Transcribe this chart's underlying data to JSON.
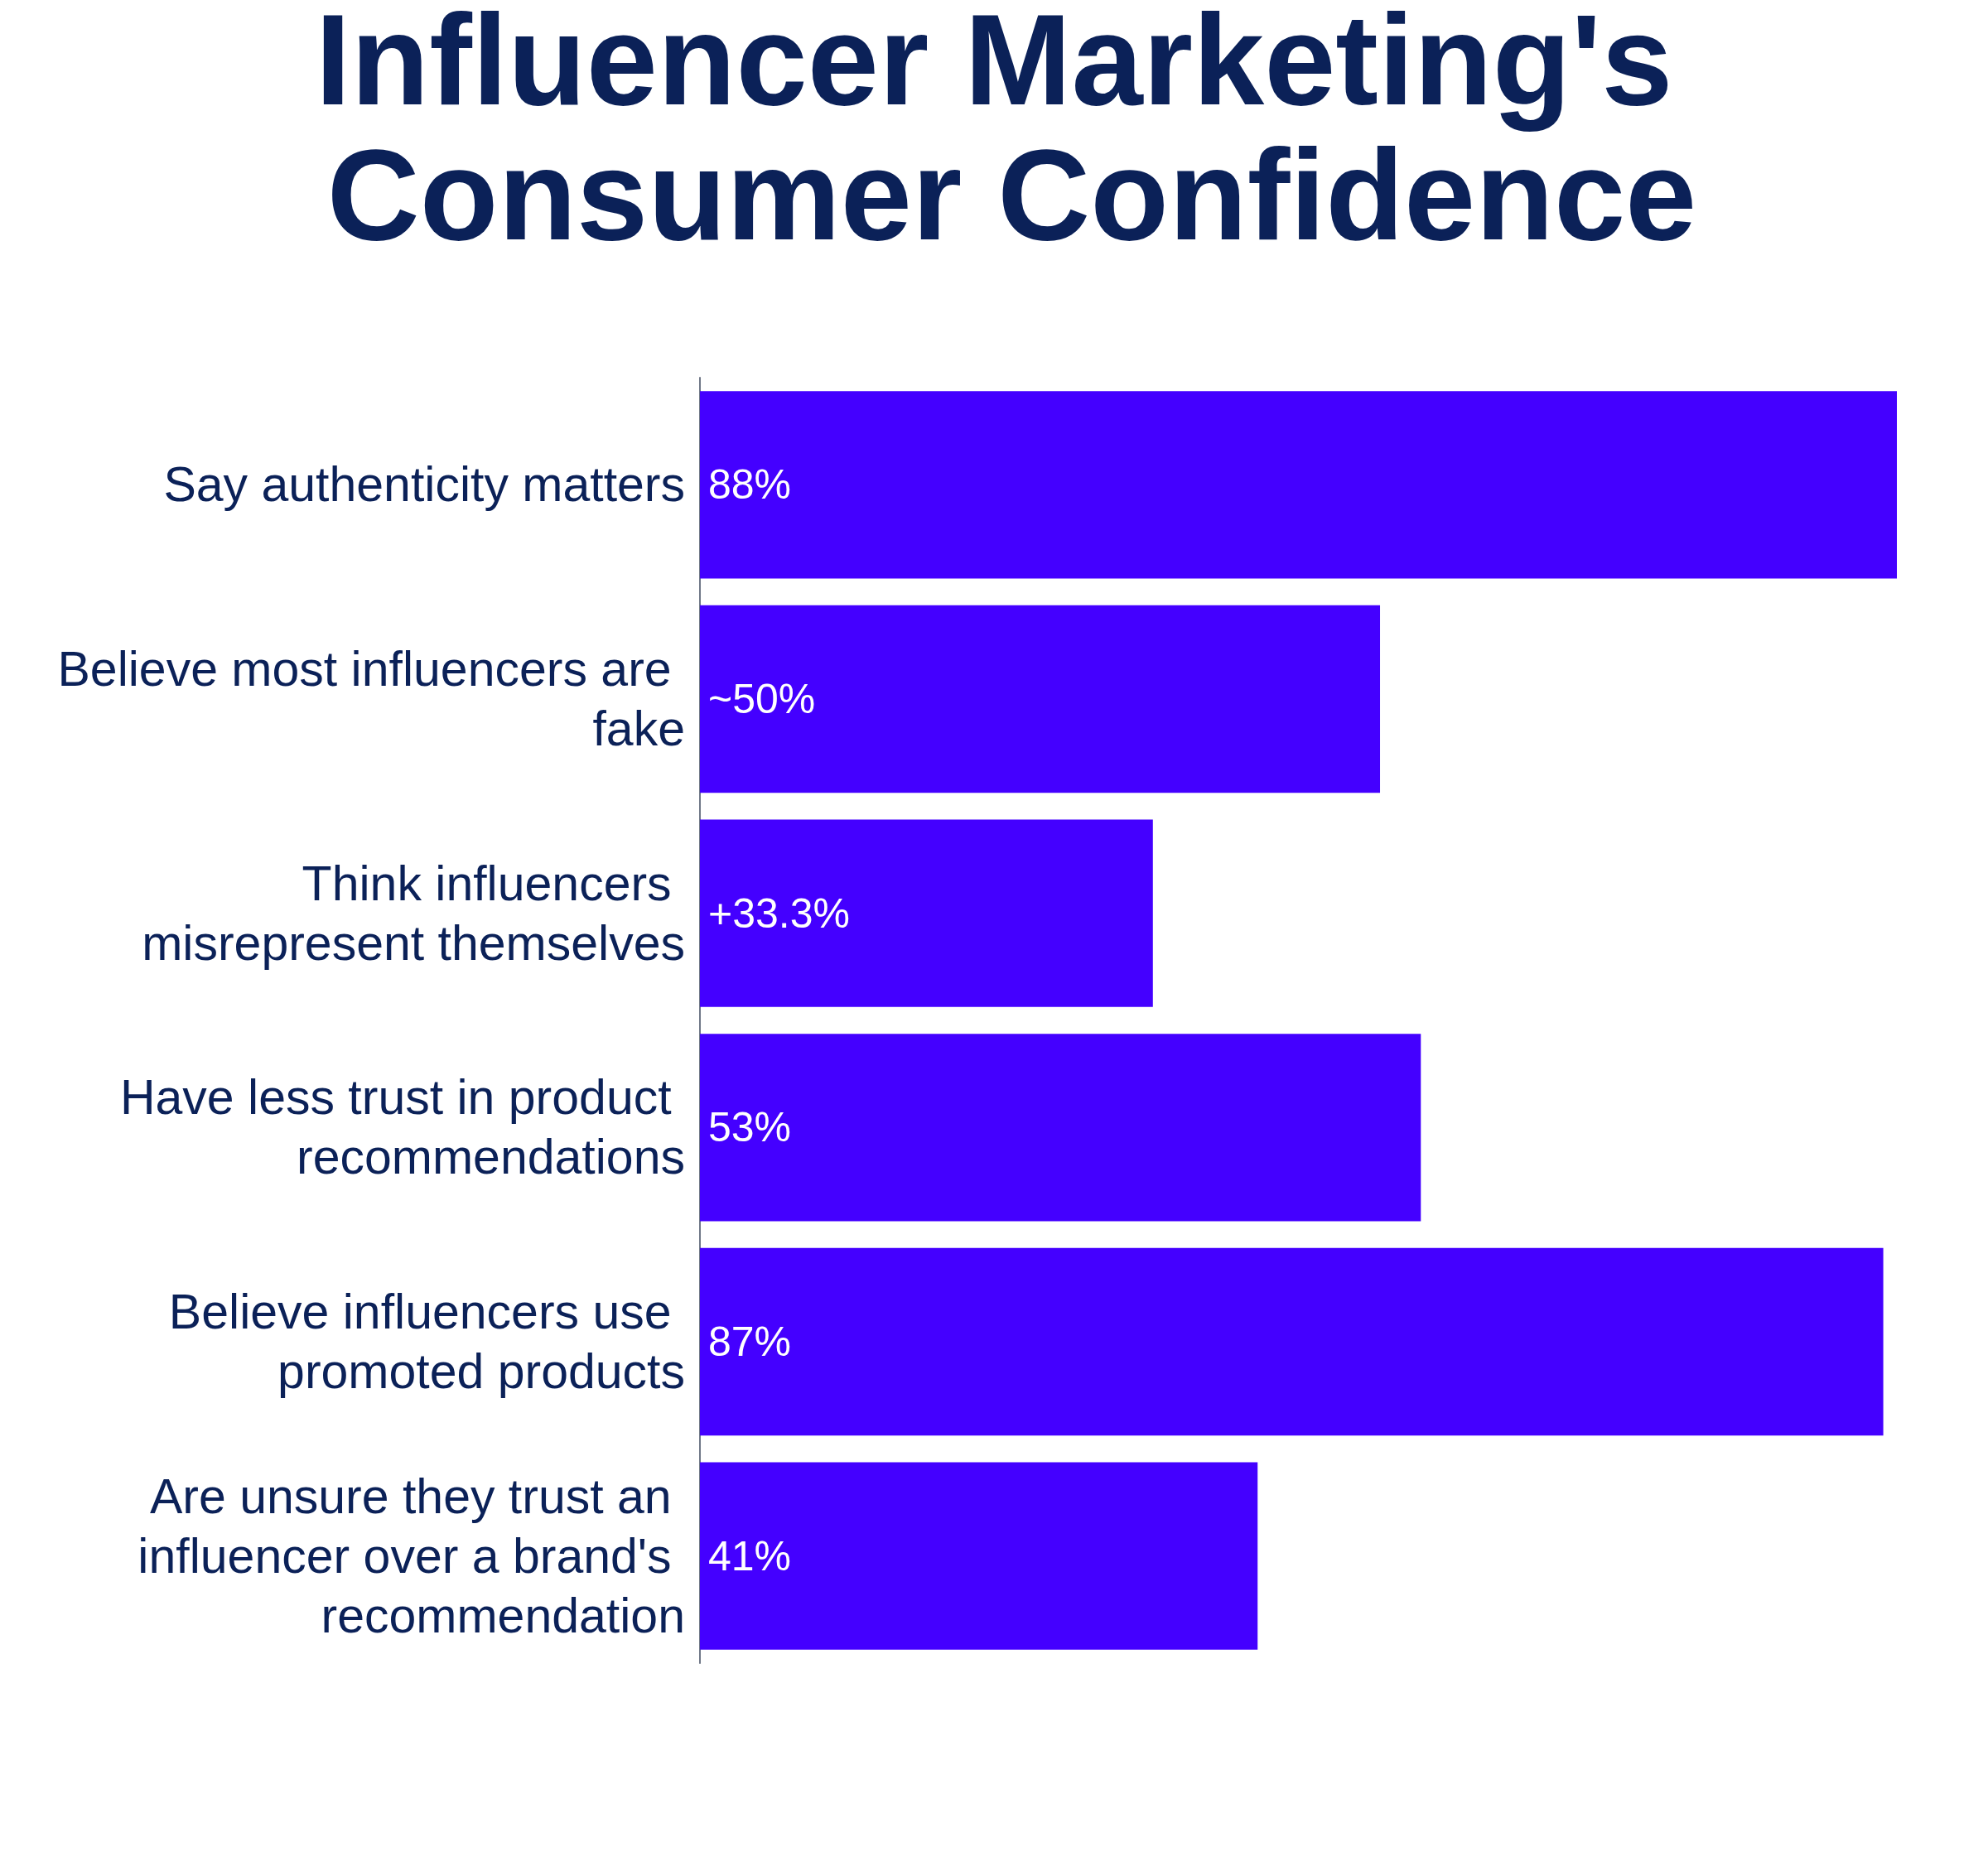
{
  "chart_data": {
    "type": "bar",
    "orientation": "horizontal",
    "title": "Influencer Marketing's Consumer Confidence",
    "categories": [
      "Say authenticity matters",
      "Believe most influencers are fake",
      "Think influencers misrepresent themselves",
      "Have less trust in product recommendations",
      "Believe influencers use promoted products",
      "Are unsure they trust an influencer over a brand's recommendation"
    ],
    "values": [
      88,
      50,
      33.3,
      53,
      87,
      41
    ],
    "value_labels": [
      "88%",
      "~50%",
      "+33.3%",
      "53%",
      "87%",
      "41%"
    ],
    "color": "#4400ff",
    "tick_labels": "y"
  }
}
